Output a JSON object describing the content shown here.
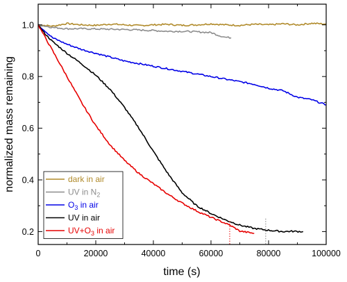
{
  "chart_data": {
    "type": "line",
    "xlabel": "time (s)",
    "ylabel": "normalized mass remaining",
    "xlim": [
      0,
      100000
    ],
    "ylim": [
      0.15,
      1.08
    ],
    "x_ticks": [
      0,
      20000,
      40000,
      60000,
      80000,
      100000
    ],
    "x_tick_labels": [
      "0",
      "20000",
      "40000",
      "60000",
      "80000",
      "100000"
    ],
    "y_ticks": [
      0.2,
      0.4,
      0.6,
      0.8,
      1.0
    ],
    "y_tick_labels": [
      "0.2",
      "0.4",
      "0.6",
      "0.8",
      "1.0"
    ],
    "grid": false,
    "legend_position": "bottom-left",
    "legend": [
      {
        "label": "dark in air",
        "color": "#b08a2a"
      },
      {
        "label": "UV in N",
        "sub": "2",
        "after": "",
        "color": "#8c8c8c"
      },
      {
        "label": "O",
        "sub": "3",
        "after": " in air",
        "color": "#0000e6"
      },
      {
        "label": "UV in air",
        "color": "#000000"
      },
      {
        "label": "UV+O",
        "sub": "3",
        "after": " in air",
        "color": "#e60000"
      }
    ],
    "series": [
      {
        "color": "#b08a2a",
        "x": [
          0,
          5000,
          10000,
          15000,
          20000,
          25000,
          30000,
          35000,
          40000,
          45000,
          50000,
          55000,
          60000,
          65000,
          70000,
          75000,
          80000,
          85000,
          90000,
          95000,
          100000
        ],
        "y": [
          1.0,
          0.995,
          1.005,
          1.0,
          0.998,
          1.003,
          1.0,
          0.997,
          1.0,
          1.002,
          0.998,
          1.0,
          1.004,
          1.0,
          0.998,
          1.002,
          1.0,
          1.004,
          1.0,
          1.006,
          1.003
        ]
      },
      {
        "color": "#8c8c8c",
        "x": [
          0,
          5000,
          10000,
          15000,
          20000,
          25000,
          30000,
          35000,
          40000,
          45000,
          50000,
          55000,
          60000,
          63000,
          65000,
          67000
        ],
        "y": [
          1.0,
          0.99,
          0.985,
          0.985,
          0.984,
          0.983,
          0.982,
          0.98,
          0.978,
          0.975,
          0.975,
          0.973,
          0.97,
          0.958,
          0.952,
          0.95
        ]
      },
      {
        "color": "#0000e6",
        "x": [
          0,
          2000,
          5000,
          10000,
          15000,
          20000,
          25000,
          30000,
          35000,
          40000,
          45000,
          50000,
          55000,
          60000,
          65000,
          70000,
          75000,
          80000,
          85000,
          88000,
          90000,
          95000,
          100000
        ],
        "y": [
          1.0,
          0.98,
          0.95,
          0.925,
          0.905,
          0.89,
          0.875,
          0.86,
          0.85,
          0.84,
          0.83,
          0.82,
          0.81,
          0.8,
          0.79,
          0.78,
          0.77,
          0.755,
          0.745,
          0.73,
          0.72,
          0.71,
          0.69
        ]
      },
      {
        "color": "#000000",
        "x": [
          0,
          2000,
          5000,
          10000,
          15000,
          20000,
          25000,
          30000,
          35000,
          40000,
          45000,
          50000,
          55000,
          60000,
          65000,
          70000,
          75000,
          78000,
          80000,
          85000,
          88000,
          92000
        ],
        "y": [
          1.0,
          0.97,
          0.935,
          0.89,
          0.85,
          0.805,
          0.75,
          0.68,
          0.6,
          0.51,
          0.425,
          0.35,
          0.3,
          0.27,
          0.245,
          0.225,
          0.212,
          0.208,
          0.205,
          0.2,
          0.201,
          0.2
        ]
      },
      {
        "color": "#e60000",
        "x": [
          0,
          2000,
          5000,
          10000,
          15000,
          20000,
          25000,
          30000,
          35000,
          40000,
          45000,
          50000,
          55000,
          60000,
          65000,
          67000,
          70000,
          75000
        ],
        "y": [
          1.0,
          0.96,
          0.9,
          0.8,
          0.7,
          0.61,
          0.535,
          0.475,
          0.425,
          0.385,
          0.345,
          0.31,
          0.28,
          0.255,
          0.232,
          0.222,
          0.202,
          0.193
        ]
      }
    ],
    "annotations": [
      {
        "type": "vline-dotted",
        "x": 66500,
        "y_from": 0.15,
        "y_to": 0.24,
        "color": "#e60000"
      },
      {
        "type": "vline-dotted",
        "x": 79000,
        "y_from": 0.15,
        "y_to": 0.25,
        "color": "#808080"
      }
    ]
  }
}
